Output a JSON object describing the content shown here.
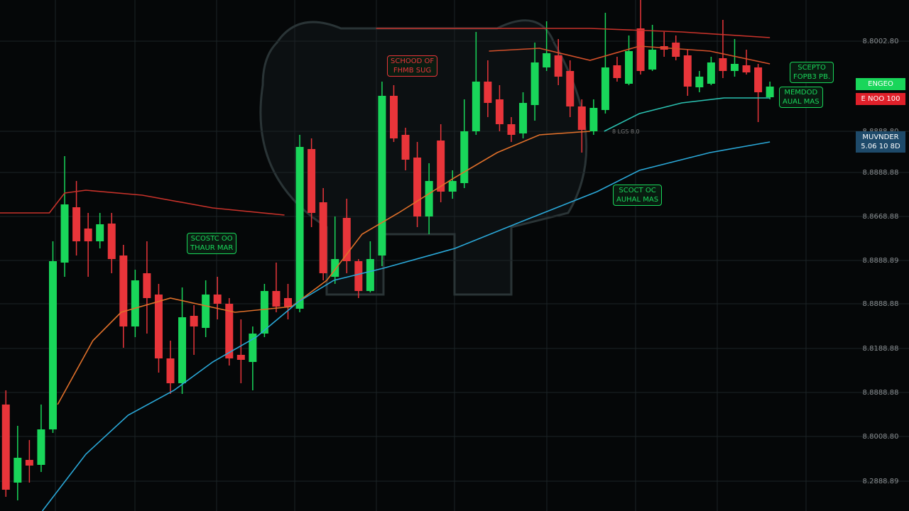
{
  "chart_data": {
    "type": "candlestick",
    "ylim": [
      0,
      720
    ],
    "yticks": [
      {
        "value": 662,
        "label": "8.8002.80"
      },
      {
        "value": 535,
        "label": "8.8888.80"
      },
      {
        "value": 477,
        "label": "8.8888.88"
      },
      {
        "value": 415,
        "label": "8.8668.88"
      },
      {
        "value": 353,
        "label": "8.8888.89"
      },
      {
        "value": 292,
        "label": "8.8888.88"
      },
      {
        "value": 229,
        "label": "8.8188.88"
      },
      {
        "value": 167,
        "label": "8.8888.88"
      },
      {
        "value": 105,
        "label": "8.8008.80"
      },
      {
        "value": 42,
        "label": "8.2888.89"
      }
    ],
    "xlim": [
      -0.5,
      72
    ],
    "grid": true,
    "up_color": "#19d65a",
    "down_color": "#e8353a",
    "open": [
      150,
      40,
      72,
      65,
      115,
      350,
      428,
      398,
      380,
      405,
      360,
      260,
      335,
      305,
      215,
      180,
      275,
      258,
      305,
      292,
      220,
      210,
      250,
      310,
      300,
      285,
      510,
      435,
      330,
      413,
      352,
      310,
      360,
      585,
      530,
      498,
      415,
      522,
      450,
      462,
      535,
      605,
      580,
      545,
      532,
      572,
      625,
      642,
      620,
      570,
      535,
      565,
      628,
      602,
      680,
      622,
      655,
      660,
      642,
      597,
      602,
      638,
      620,
      628,
      625,
      583
    ],
    "high": [
      170,
      120,
      100,
      150,
      380,
      500,
      465,
      420,
      420,
      420,
      375,
      340,
      380,
      320,
      240,
      315,
      290,
      325,
      330,
      300,
      270,
      260,
      320,
      350,
      320,
      530,
      525,
      455,
      415,
      440,
      355,
      380,
      605,
      600,
      540,
      520,
      490,
      545,
      480,
      580,
      675,
      635,
      600,
      555,
      590,
      660,
      690,
      665,
      635,
      580,
      580,
      702,
      640,
      670,
      720,
      685,
      675,
      670,
      650,
      620,
      640,
      692,
      665,
      650,
      630,
      605
    ],
    "low": [
      20,
      15,
      40,
      55,
      110,
      330,
      360,
      330,
      370,
      335,
      230,
      245,
      250,
      195,
      165,
      165,
      220,
      245,
      270,
      205,
      180,
      170,
      245,
      280,
      270,
      280,
      400,
      325,
      320,
      335,
      300,
      308,
      345,
      520,
      480,
      400,
      390,
      435,
      440,
      455,
      530,
      555,
      535,
      520,
      525,
      550,
      620,
      600,
      555,
      505,
      530,
      560,
      605,
      600,
      615,
      620,
      640,
      635,
      585,
      590,
      600,
      610,
      612,
      615,
      548,
      580
    ],
    "close": [
      30,
      75,
      64,
      115,
      352,
      432,
      380,
      380,
      404,
      355,
      260,
      325,
      300,
      215,
      180,
      273,
      260,
      305,
      292,
      215,
      213,
      250,
      310,
      288,
      288,
      513,
      420,
      335,
      355,
      352,
      310,
      355,
      585,
      525,
      495,
      415,
      465,
      450,
      465,
      535,
      605,
      575,
      545,
      530,
      575,
      632,
      645,
      612,
      570,
      537,
      568,
      625,
      610,
      648,
      620,
      650,
      650,
      640,
      598,
      612,
      632,
      620,
      630,
      618,
      590,
      598
    ],
    "lines": [
      {
        "color": "#c8322a",
        "x": [
          -0.5,
          3.7,
          5,
          6.8,
          11.6,
          17.6,
          23.7,
          27.6,
          31.5,
          41.8,
          49.7,
          57.5,
          65
        ],
        "values": [
          420,
          420,
          448,
          452,
          445,
          427,
          417,
          null,
          680,
          680,
          680,
          675,
          667
        ]
      },
      {
        "color": "#d4502a",
        "x": [
          41.1,
          45.4,
          49.7,
          53.9,
          59.9,
          65
        ],
        "values": [
          648,
          652,
          635,
          655,
          648,
          630
        ]
      },
      {
        "color": "#e0702a",
        "x": [
          4.4,
          7.4,
          9.8,
          14,
          19.5,
          24.3,
          27.3,
          30.3,
          33.4,
          38.2,
          41.8,
          45.4,
          49.7
        ],
        "values": [
          150,
          240,
          280,
          300,
          280,
          288,
          325,
          390,
          420,
          470,
          505,
          530,
          535
        ]
      },
      {
        "color": "#2aa8d8",
        "x": [
          3.1,
          6.8,
          10.4,
          14.3,
          17.6,
          21.3,
          24.9,
          27.9,
          32.1,
          38.2,
          44.2,
          50.3,
          53.9,
          59.9,
          65
        ],
        "values": [
          0,
          80,
          135,
          170,
          210,
          245,
          295,
          325,
          342,
          370,
          410,
          450,
          480,
          505,
          520
        ]
      },
      {
        "color": "#2ac0b0",
        "x": [
          50.9,
          53.9,
          57.5,
          61.1,
          65
        ],
        "values": [
          535,
          560,
          575,
          582,
          582
        ]
      }
    ],
    "annotations": [
      {
        "lines": [
          "SCHOOD OF",
          "FHMB SUG"
        ],
        "color": "#e8353a"
      },
      {
        "lines": [
          "SCOSTC OO",
          "THAUR MAR"
        ],
        "color": "#19d65a"
      },
      {
        "lines": [
          "SCOCT OC",
          "AUHAL MAS"
        ],
        "color": "#19d65a"
      },
      {
        "lines": [
          "SCEPTO",
          "FOPB3 PB."
        ],
        "color": "#19d65a"
      },
      {
        "lines": [
          "MEMDOD",
          "AUAL MAS"
        ],
        "color": "#19d65a"
      }
    ],
    "price_tags": [
      {
        "lines": [
          "ENGEO"
        ],
        "color": "#19d65a"
      },
      {
        "lines": [
          "E NOO 100"
        ],
        "color": "#e0202a"
      },
      {
        "lines": [
          "MUVNDER",
          "5.06 10 8D"
        ],
        "color": "#1e4a6a"
      }
    ],
    "note": "8 LGS 8.0"
  }
}
